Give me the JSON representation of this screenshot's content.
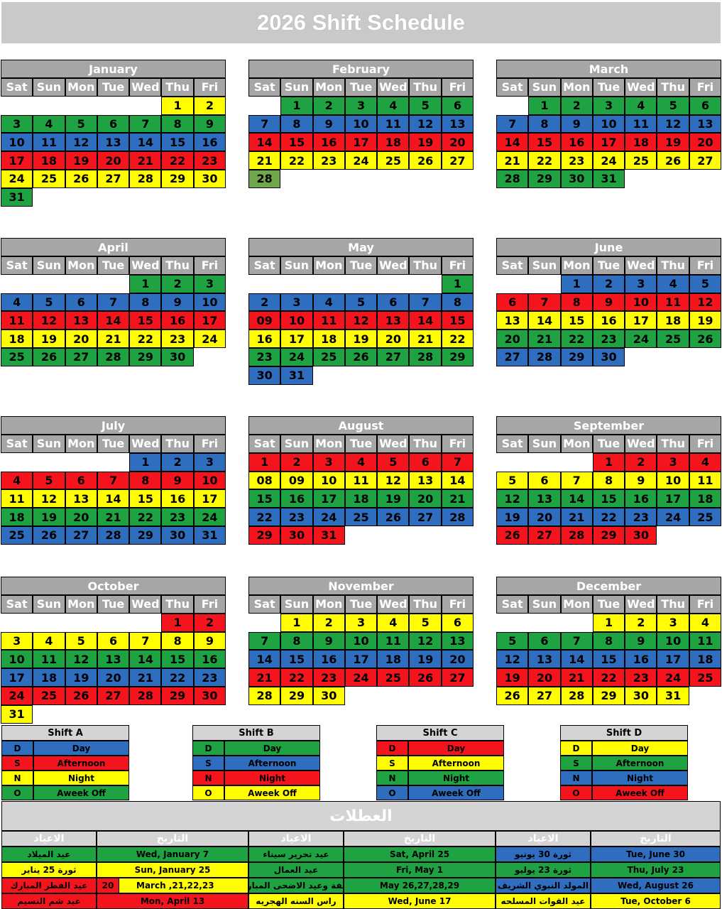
{
  "title": "2026 Shift Schedule",
  "weekdays": [
    "Sat",
    "Sun",
    "Mon",
    "Tue",
    "Wed",
    "Thu",
    "Fri"
  ],
  "colors": {
    "green": "#1fa342",
    "yellow": "#fffd00",
    "blue": "#2f6dbf",
    "red": "#f4141d",
    "olive": "#70a74b"
  },
  "months": [
    {
      "name": "January",
      "offset": 5,
      "days": [
        "1",
        "2",
        "3",
        "4",
        "5",
        "6",
        "7",
        "8",
        "9",
        "10",
        "11",
        "12",
        "13",
        "14",
        "15",
        "16",
        "17",
        "18",
        "19",
        "20",
        "21",
        "22",
        "23",
        "24",
        "25",
        "26",
        "27",
        "28",
        "29",
        "30",
        "31"
      ],
      "colors": [
        "yellow",
        "yellow",
        "green",
        "green",
        "green",
        "green",
        "green",
        "green",
        "green",
        "blue",
        "blue",
        "blue",
        "blue",
        "blue",
        "blue",
        "blue",
        "red",
        "red",
        "red",
        "red",
        "red",
        "red",
        "red",
        "yellow",
        "yellow",
        "yellow",
        "yellow",
        "yellow",
        "yellow",
        "yellow",
        "green"
      ]
    },
    {
      "name": "February",
      "offset": 1,
      "days": [
        "1",
        "2",
        "3",
        "4",
        "5",
        "6",
        "7",
        "8",
        "9",
        "10",
        "11",
        "12",
        "13",
        "14",
        "15",
        "16",
        "17",
        "18",
        "19",
        "20",
        "21",
        "22",
        "23",
        "24",
        "25",
        "26",
        "27",
        "28"
      ],
      "colors": [
        "green",
        "green",
        "green",
        "green",
        "green",
        "green",
        "blue",
        "blue",
        "blue",
        "blue",
        "blue",
        "blue",
        "blue",
        "red",
        "red",
        "red",
        "red",
        "red",
        "red",
        "red",
        "yellow",
        "yellow",
        "yellow",
        "yellow",
        "yellow",
        "yellow",
        "yellow",
        "olive"
      ]
    },
    {
      "name": "March",
      "offset": 1,
      "days": [
        "1",
        "2",
        "3",
        "4",
        "5",
        "6",
        "7",
        "8",
        "9",
        "10",
        "11",
        "12",
        "13",
        "14",
        "15",
        "16",
        "17",
        "18",
        "19",
        "20",
        "21",
        "22",
        "23",
        "24",
        "25",
        "26",
        "27",
        "28",
        "29",
        "30",
        "31"
      ],
      "colors": [
        "green",
        "green",
        "green",
        "green",
        "green",
        "green",
        "blue",
        "blue",
        "blue",
        "blue",
        "blue",
        "blue",
        "blue",
        "red",
        "red",
        "red",
        "red",
        "red",
        "red",
        "red",
        "yellow",
        "yellow",
        "yellow",
        "yellow",
        "yellow",
        "yellow",
        "yellow",
        "green",
        "green",
        "green",
        "green"
      ]
    },
    {
      "name": "April",
      "offset": 4,
      "days": [
        "1",
        "2",
        "3",
        "4",
        "5",
        "6",
        "7",
        "8",
        "9",
        "10",
        "11",
        "12",
        "13",
        "14",
        "15",
        "16",
        "17",
        "18",
        "19",
        "20",
        "21",
        "22",
        "23",
        "24",
        "25",
        "26",
        "27",
        "28",
        "29",
        "30"
      ],
      "colors": [
        "green",
        "green",
        "green",
        "blue",
        "blue",
        "blue",
        "blue",
        "blue",
        "blue",
        "blue",
        "red",
        "red",
        "red",
        "red",
        "red",
        "red",
        "red",
        "yellow",
        "yellow",
        "yellow",
        "yellow",
        "yellow",
        "yellow",
        "yellow",
        "green",
        "green",
        "green",
        "green",
        "green",
        "green"
      ]
    },
    {
      "name": "May",
      "offset": 6,
      "days": [
        "1",
        "2",
        "3",
        "4",
        "5",
        "6",
        "7",
        "8",
        "09",
        "10",
        "11",
        "12",
        "13",
        "14",
        "15",
        "16",
        "17",
        "18",
        "19",
        "20",
        "21",
        "22",
        "23",
        "24",
        "25",
        "26",
        "27",
        "28",
        "29",
        "30",
        "31"
      ],
      "colors": [
        "green",
        "blue",
        "blue",
        "blue",
        "blue",
        "blue",
        "blue",
        "blue",
        "red",
        "red",
        "red",
        "red",
        "red",
        "red",
        "red",
        "yellow",
        "yellow",
        "yellow",
        "yellow",
        "yellow",
        "yellow",
        "yellow",
        "green",
        "green",
        "green",
        "green",
        "green",
        "green",
        "green",
        "blue",
        "blue"
      ]
    },
    {
      "name": "June",
      "offset": 2,
      "days": [
        "1",
        "2",
        "3",
        "4",
        "5",
        "6",
        "7",
        "8",
        "9",
        "10",
        "11",
        "12",
        "13",
        "14",
        "15",
        "16",
        "17",
        "18",
        "19",
        "20",
        "21",
        "22",
        "23",
        "24",
        "25",
        "26",
        "27",
        "28",
        "29",
        "30"
      ],
      "colors": [
        "blue",
        "blue",
        "blue",
        "blue",
        "blue",
        "red",
        "red",
        "red",
        "red",
        "red",
        "red",
        "red",
        "yellow",
        "yellow",
        "yellow",
        "yellow",
        "yellow",
        "yellow",
        "yellow",
        "green",
        "green",
        "green",
        "green",
        "green",
        "green",
        "green",
        "blue",
        "blue",
        "blue",
        "blue"
      ]
    },
    {
      "name": "July",
      "offset": 4,
      "days": [
        "1",
        "2",
        "3",
        "4",
        "5",
        "6",
        "7",
        "8",
        "9",
        "10",
        "11",
        "12",
        "13",
        "14",
        "15",
        "16",
        "17",
        "18",
        "19",
        "20",
        "21",
        "22",
        "23",
        "24",
        "25",
        "26",
        "27",
        "28",
        "29",
        "30",
        "31"
      ],
      "colors": [
        "blue",
        "blue",
        "blue",
        "red",
        "red",
        "red",
        "red",
        "red",
        "red",
        "red",
        "yellow",
        "yellow",
        "yellow",
        "yellow",
        "yellow",
        "yellow",
        "yellow",
        "green",
        "green",
        "green",
        "green",
        "green",
        "green",
        "green",
        "blue",
        "blue",
        "blue",
        "blue",
        "blue",
        "blue",
        "blue"
      ]
    },
    {
      "name": "August",
      "offset": 0,
      "days": [
        "1",
        "2",
        "3",
        "4",
        "5",
        "6",
        "7",
        "08",
        "09",
        "10",
        "11",
        "12",
        "13",
        "14",
        "15",
        "16",
        "17",
        "18",
        "19",
        "20",
        "21",
        "22",
        "23",
        "24",
        "25",
        "26",
        "27",
        "28",
        "29",
        "30",
        "31"
      ],
      "colors": [
        "red",
        "red",
        "red",
        "red",
        "red",
        "red",
        "red",
        "yellow",
        "yellow",
        "yellow",
        "yellow",
        "yellow",
        "yellow",
        "yellow",
        "green",
        "green",
        "green",
        "green",
        "green",
        "green",
        "green",
        "blue",
        "blue",
        "blue",
        "blue",
        "blue",
        "blue",
        "blue",
        "red",
        "red",
        "red"
      ]
    },
    {
      "name": "September",
      "offset": 3,
      "days": [
        "1",
        "2",
        "3",
        "4",
        "5",
        "6",
        "7",
        "8",
        "9",
        "10",
        "11",
        "12",
        "13",
        "14",
        "15",
        "16",
        "17",
        "18",
        "19",
        "20",
        "21",
        "22",
        "23",
        "24",
        "25",
        "26",
        "27",
        "28",
        "29",
        "30"
      ],
      "colors": [
        "red",
        "red",
        "red",
        "red",
        "yellow",
        "yellow",
        "yellow",
        "yellow",
        "yellow",
        "yellow",
        "yellow",
        "green",
        "green",
        "green",
        "green",
        "green",
        "green",
        "green",
        "blue",
        "blue",
        "blue",
        "blue",
        "blue",
        "blue",
        "blue",
        "red",
        "red",
        "red",
        "red",
        "red"
      ]
    },
    {
      "name": "October",
      "offset": 5,
      "days": [
        "1",
        "2",
        "3",
        "4",
        "5",
        "6",
        "7",
        "8",
        "9",
        "10",
        "11",
        "12",
        "13",
        "14",
        "15",
        "16",
        "17",
        "18",
        "19",
        "20",
        "21",
        "22",
        "23",
        "24",
        "25",
        "26",
        "27",
        "28",
        "29",
        "30",
        "31"
      ],
      "colors": [
        "red",
        "red",
        "yellow",
        "yellow",
        "yellow",
        "yellow",
        "yellow",
        "yellow",
        "yellow",
        "green",
        "green",
        "green",
        "green",
        "green",
        "green",
        "green",
        "blue",
        "blue",
        "blue",
        "blue",
        "blue",
        "blue",
        "blue",
        "red",
        "red",
        "red",
        "red",
        "red",
        "red",
        "red",
        "yellow"
      ]
    },
    {
      "name": "November",
      "offset": 1,
      "days": [
        "1",
        "2",
        "3",
        "4",
        "5",
        "6",
        "7",
        "8",
        "9",
        "10",
        "11",
        "12",
        "13",
        "14",
        "15",
        "16",
        "17",
        "18",
        "19",
        "20",
        "21",
        "22",
        "23",
        "24",
        "25",
        "26",
        "27",
        "28",
        "29",
        "30"
      ],
      "colors": [
        "yellow",
        "yellow",
        "yellow",
        "yellow",
        "yellow",
        "yellow",
        "green",
        "green",
        "green",
        "green",
        "green",
        "green",
        "green",
        "blue",
        "blue",
        "blue",
        "blue",
        "blue",
        "blue",
        "blue",
        "red",
        "red",
        "red",
        "red",
        "red",
        "red",
        "red",
        "yellow",
        "yellow",
        "yellow"
      ]
    },
    {
      "name": "December",
      "offset": 3,
      "days": [
        "1",
        "2",
        "3",
        "4",
        "5",
        "6",
        "7",
        "8",
        "9",
        "10",
        "11",
        "12",
        "13",
        "14",
        "15",
        "16",
        "17",
        "18",
        "19",
        "20",
        "21",
        "22",
        "23",
        "24",
        "25",
        "26",
        "27",
        "28",
        "29",
        "30",
        "31"
      ],
      "colors": [
        "yellow",
        "yellow",
        "yellow",
        "yellow",
        "green",
        "green",
        "green",
        "green",
        "green",
        "green",
        "green",
        "blue",
        "blue",
        "blue",
        "blue",
        "blue",
        "blue",
        "blue",
        "red",
        "red",
        "red",
        "red",
        "red",
        "red",
        "red",
        "yellow",
        "yellow",
        "yellow",
        "yellow",
        "yellow",
        "yellow"
      ]
    }
  ],
  "legends": [
    {
      "name": "Shift A",
      "rows": [
        {
          "code": "D",
          "label": "Day",
          "color": "blue"
        },
        {
          "code": "S",
          "label": "Afternoon",
          "color": "red"
        },
        {
          "code": "N",
          "label": "Night",
          "color": "yellow"
        },
        {
          "code": "O",
          "label": "Aweek Off",
          "color": "green"
        }
      ]
    },
    {
      "name": "Shift B",
      "rows": [
        {
          "code": "D",
          "label": "Day",
          "color": "green"
        },
        {
          "code": "S",
          "label": "Afternoon",
          "color": "blue"
        },
        {
          "code": "N",
          "label": "Night",
          "color": "red"
        },
        {
          "code": "O",
          "label": "Aweek Off",
          "color": "yellow"
        }
      ]
    },
    {
      "name": "Shift C",
      "rows": [
        {
          "code": "D",
          "label": "Day",
          "color": "red"
        },
        {
          "code": "S",
          "label": "Afternoon",
          "color": "yellow"
        },
        {
          "code": "N",
          "label": "Night",
          "color": "green"
        },
        {
          "code": "O",
          "label": "Aweek Off",
          "color": "blue"
        }
      ]
    },
    {
      "name": "Shift D",
      "rows": [
        {
          "code": "D",
          "label": "Day",
          "color": "yellow"
        },
        {
          "code": "S",
          "label": "Afternoon",
          "color": "green"
        },
        {
          "code": "N",
          "label": "Night",
          "color": "blue"
        },
        {
          "code": "O",
          "label": "Aweek Off",
          "color": "red"
        }
      ]
    }
  ],
  "holidays": {
    "title": "العطلات",
    "headers": [
      "الاعياد",
      "التاريخ",
      "الاعياد",
      "التاريخ",
      "الاعياد",
      "التاريخ"
    ],
    "rows": [
      [
        {
          "t": "عيد الميلاد",
          "c": "green"
        },
        {
          "t": "Wed, January 7",
          "c": "green"
        },
        {
          "t": "عيد تحرير سيناء",
          "c": "green"
        },
        {
          "t": "Sat, April 25",
          "c": "green"
        },
        {
          "t": "ثورة 30 يونيو",
          "c": "blue"
        },
        {
          "t": "Tue, June 30",
          "c": "blue"
        }
      ],
      [
        {
          "t": "ثورة 25 يناير",
          "c": "yellow"
        },
        {
          "t": "Sun, January 25",
          "c": "yellow"
        },
        {
          "t": "عيد العمال",
          "c": "green"
        },
        {
          "t": "Fri, May 1",
          "c": "green"
        },
        {
          "t": "ثورة 23 يوليو",
          "c": "green"
        },
        {
          "t": "Thu, July 23",
          "c": "green"
        }
      ],
      [
        {
          "t": "عيد الفطر المبارك",
          "c": "red"
        },
        {
          "t": "March ,21,22,23",
          "c": "yellow",
          "pre": "20"
        },
        {
          "t": "وقفة وعيد الاضحى المبارك",
          "c": "green"
        },
        {
          "t": "May 26,27,28,29",
          "c": "green"
        },
        {
          "t": "المولد النبوي الشريف",
          "c": "blue"
        },
        {
          "t": "Wed, August 26",
          "c": "blue"
        }
      ],
      [
        {
          "t": "عيد شم النسيم",
          "c": "red"
        },
        {
          "t": "Mon, April 13",
          "c": "red"
        },
        {
          "t": "راس السنه الهجريه",
          "c": "yellow"
        },
        {
          "t": "Wed, June 17",
          "c": "yellow"
        },
        {
          "t": "عيد القوات المسلحه",
          "c": "yellow"
        },
        {
          "t": "Tue, October 6",
          "c": "yellow"
        }
      ]
    ]
  }
}
